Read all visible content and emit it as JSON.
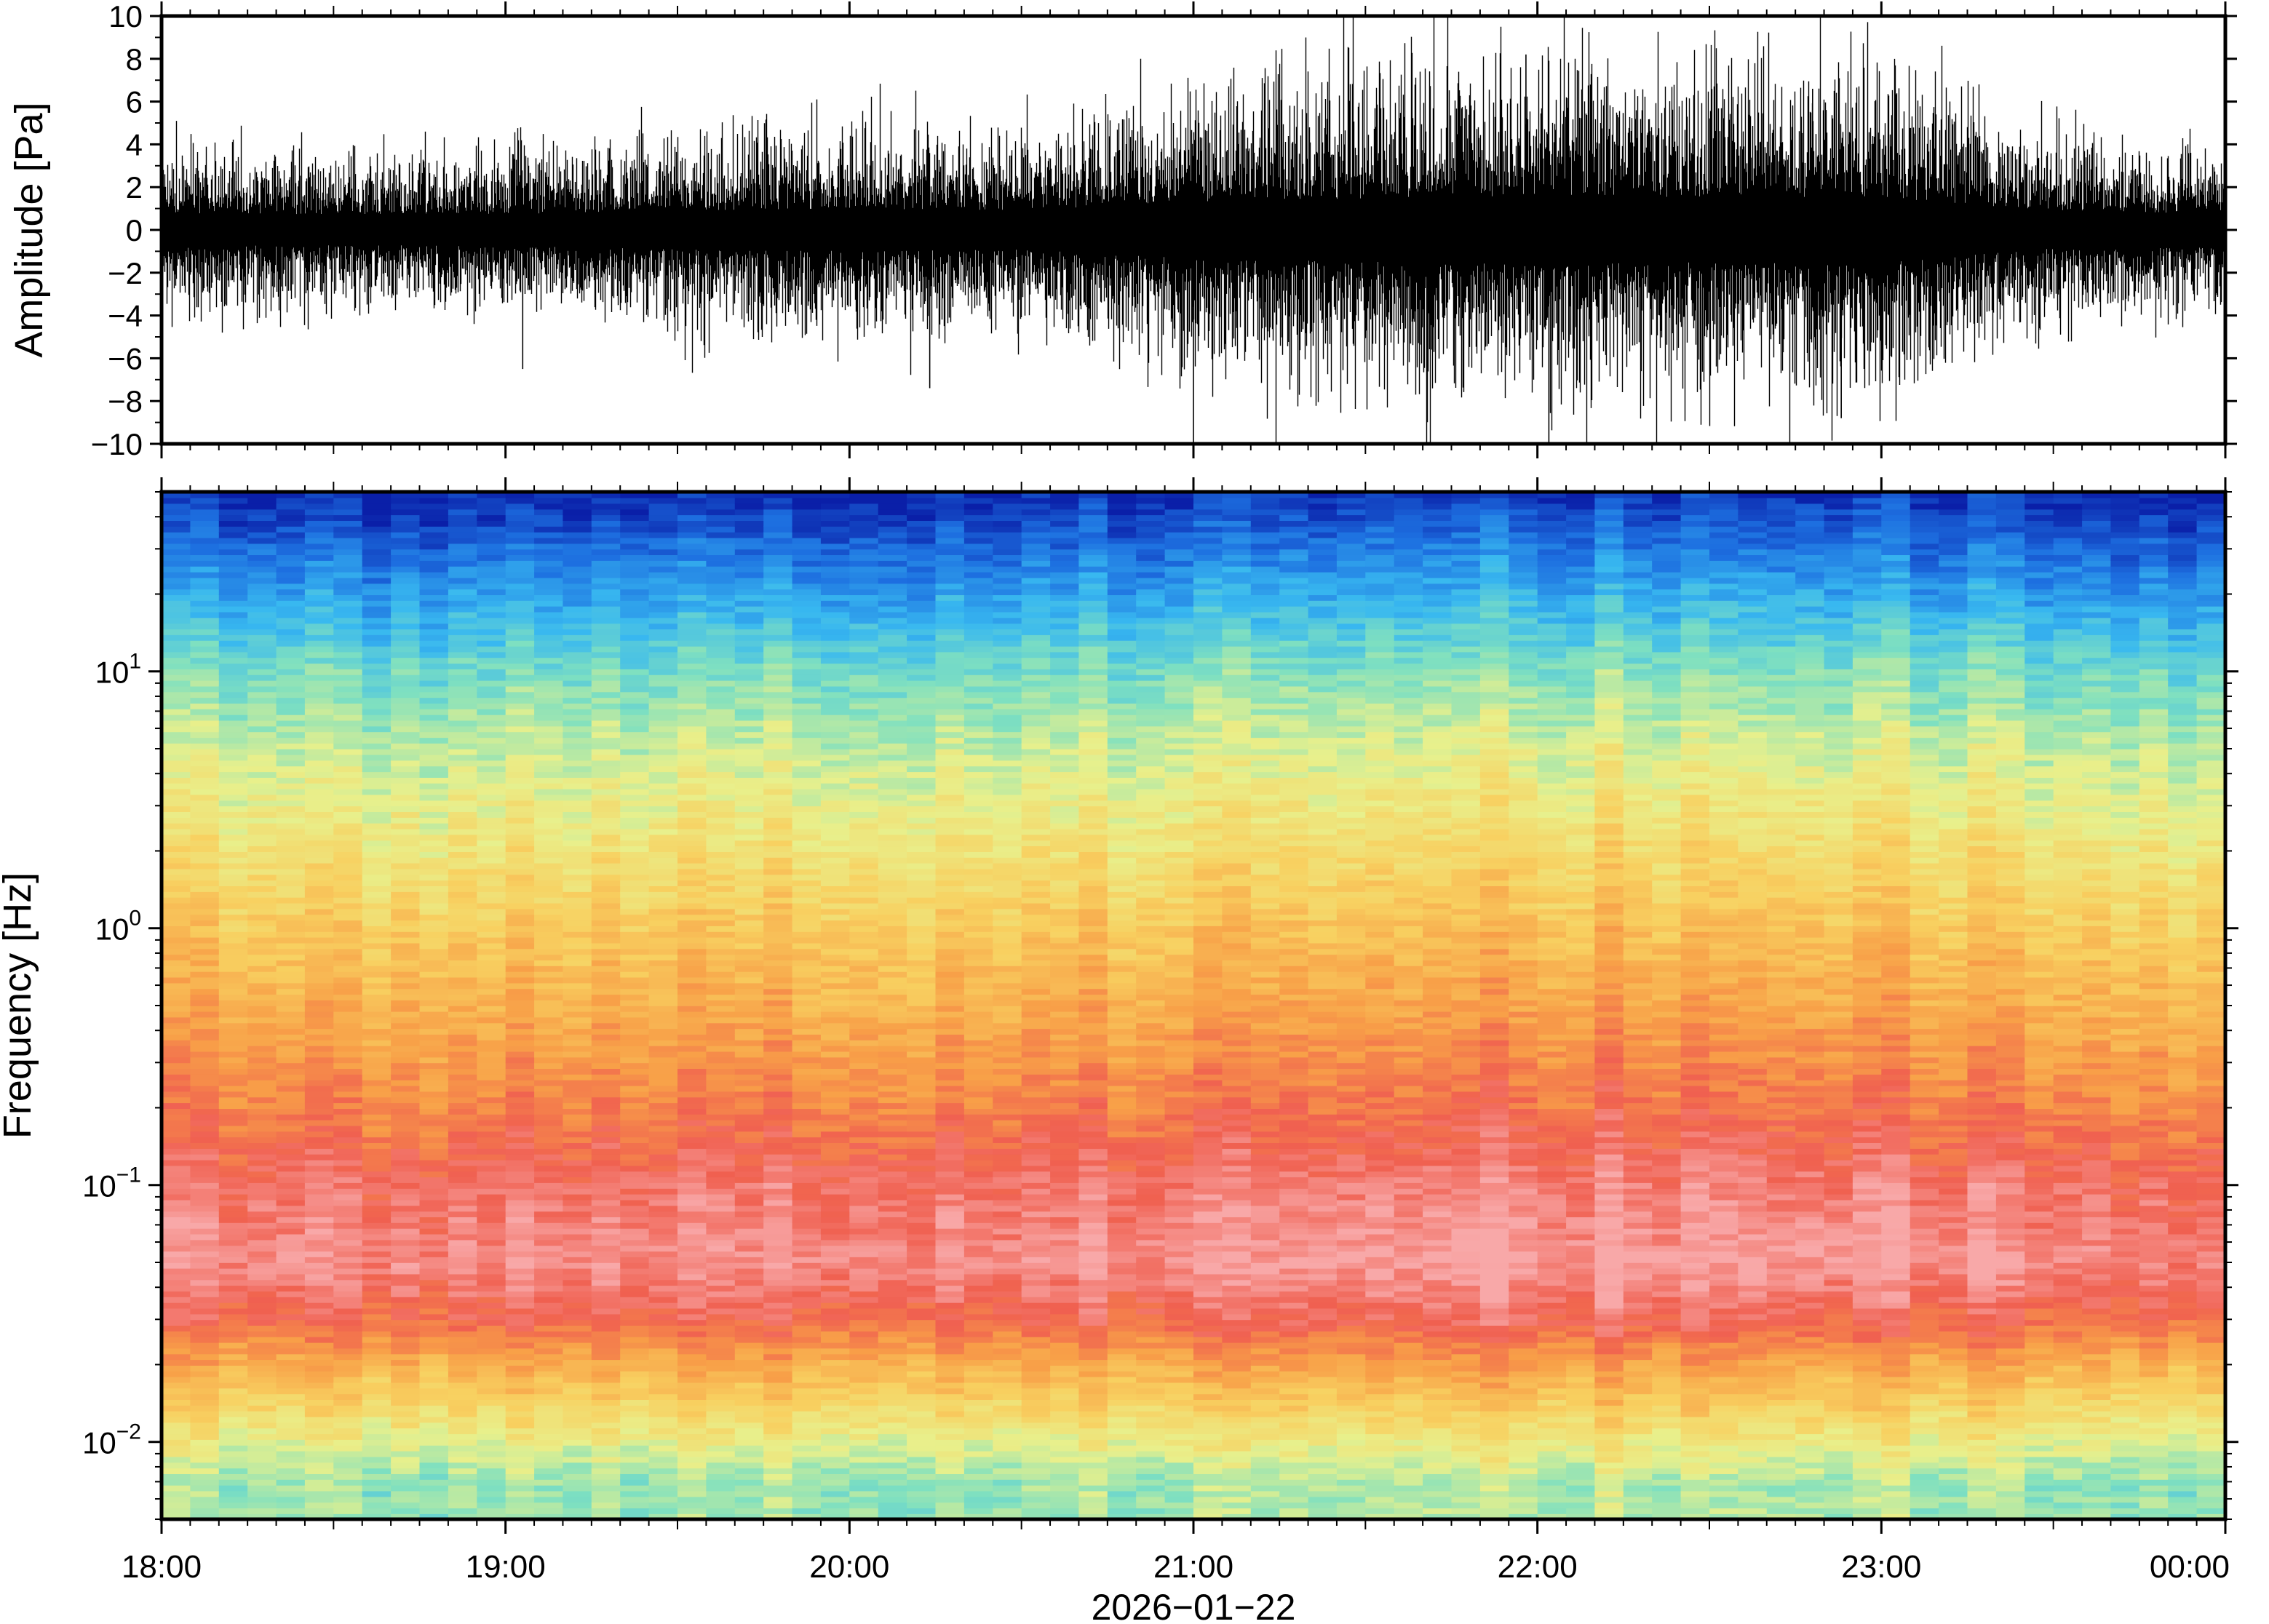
{
  "chart_data": [
    {
      "type": "line",
      "ylabel": "Amplitude [Pa]",
      "ylim": [
        -10,
        10
      ],
      "yticks": [
        {
          "value": 10,
          "label": "10"
        },
        {
          "value": 8,
          "label": "8"
        },
        {
          "value": 6,
          "label": "6"
        },
        {
          "value": 4,
          "label": "4"
        },
        {
          "value": 2,
          "label": "2"
        },
        {
          "value": 0,
          "label": "0"
        },
        {
          "value": -2,
          "label": "−2"
        },
        {
          "value": -4,
          "label": "−4"
        },
        {
          "value": -6,
          "label": "−6"
        },
        {
          "value": -8,
          "label": "−8"
        },
        {
          "value": -10,
          "label": "−10"
        }
      ],
      "series": [
        {
          "color": "#000000",
          "envelope_x": [
            "18:00",
            "18:30",
            "19:00",
            "19:30",
            "20:00",
            "20:30",
            "21:00",
            "21:30",
            "22:00",
            "22:30",
            "23:00",
            "23:30",
            "00:00"
          ],
          "envelope_amplitude": [
            2.2,
            2.0,
            2.1,
            2.6,
            2.8,
            2.6,
            3.8,
            4.2,
            4.6,
            4.3,
            4.4,
            2.4,
            2.2
          ]
        }
      ],
      "spikes": [
        {
          "x": "18:00",
          "value": -5.2
        },
        {
          "x": "19:03",
          "value": -6.5
        },
        {
          "x": "20:14",
          "value": -7.4
        },
        {
          "x": "21:00",
          "value": -10
        },
        {
          "x": "21:58",
          "value": 8.2
        },
        {
          "x": "22:02",
          "value": -10
        },
        {
          "x": "22:48",
          "value": 6.6
        },
        {
          "x": "22:53",
          "value": -8.8
        }
      ]
    },
    {
      "type": "heatmap",
      "ylabel": "Frequency [Hz]",
      "yscale": "log",
      "ylim": [
        0.005,
        50
      ],
      "yticks": [
        {
          "value": 10,
          "base": "10",
          "exp": "1"
        },
        {
          "value": 1,
          "base": "10",
          "exp": "0"
        },
        {
          "value": 0.1,
          "base": "10",
          "exp": "−1"
        },
        {
          "value": 0.01,
          "base": "10",
          "exp": "−2"
        }
      ],
      "colormap": [
        "#0a1fa8",
        "#1d6fe0",
        "#38b8f0",
        "#7fe0c0",
        "#e8f08c",
        "#f8d060",
        "#f8a048",
        "#f06050",
        "#f8a8a8"
      ],
      "power_profile": [
        {
          "frequency": 50,
          "level": 0.0
        },
        {
          "frequency": 20,
          "level": 0.2
        },
        {
          "frequency": 10,
          "level": 0.35
        },
        {
          "frequency": 5,
          "level": 0.45
        },
        {
          "frequency": 2,
          "level": 0.55
        },
        {
          "frequency": 1,
          "level": 0.63
        },
        {
          "frequency": 0.5,
          "level": 0.7
        },
        {
          "frequency": 0.2,
          "level": 0.8
        },
        {
          "frequency": 0.1,
          "level": 0.9
        },
        {
          "frequency": 0.05,
          "level": 0.95
        },
        {
          "frequency": 0.03,
          "level": 0.85
        },
        {
          "frequency": 0.02,
          "level": 0.7
        },
        {
          "frequency": 0.01,
          "level": 0.5
        },
        {
          "frequency": 0.007,
          "level": 0.4
        }
      ]
    }
  ],
  "xaxis": {
    "range": [
      "18:00",
      "00:00"
    ],
    "ticks": [
      "18:00",
      "19:00",
      "20:00",
      "21:00",
      "22:00",
      "23:00",
      "00:00"
    ],
    "date_label": "2026−01−22"
  }
}
